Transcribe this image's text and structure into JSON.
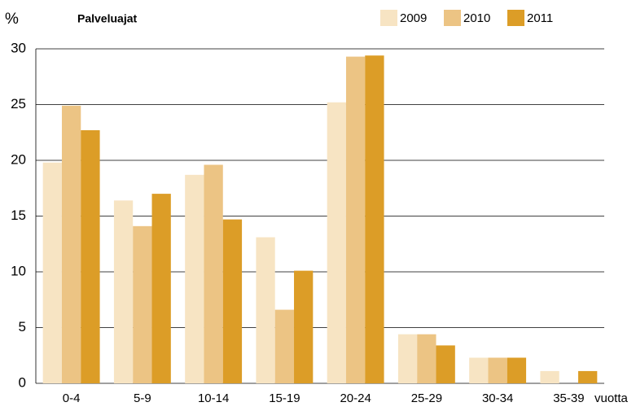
{
  "chart_data": {
    "type": "bar",
    "title": "Palveluajat",
    "y_label": "%",
    "x_label": "vuotta",
    "categories": [
      "0-4",
      "5-9",
      "10-14",
      "15-19",
      "20-24",
      "25-29",
      "30-34",
      "35-39"
    ],
    "series": [
      {
        "name": "2009",
        "color": "#f7e4c3",
        "values": [
          19.8,
          16.4,
          18.7,
          13.1,
          25.2,
          4.4,
          2.3,
          1.1
        ]
      },
      {
        "name": "2010",
        "color": "#ecc484",
        "values": [
          24.9,
          14.1,
          19.6,
          6.6,
          29.3,
          4.4,
          2.3,
          0
        ]
      },
      {
        "name": "2011",
        "color": "#dc9d27",
        "values": [
          22.7,
          17.0,
          14.7,
          10.1,
          29.4,
          3.4,
          2.3,
          1.1
        ]
      }
    ],
    "ylim": [
      0,
      30
    ],
    "yticks": [
      0,
      5,
      10,
      15,
      20,
      25,
      30
    ],
    "grid": true
  }
}
